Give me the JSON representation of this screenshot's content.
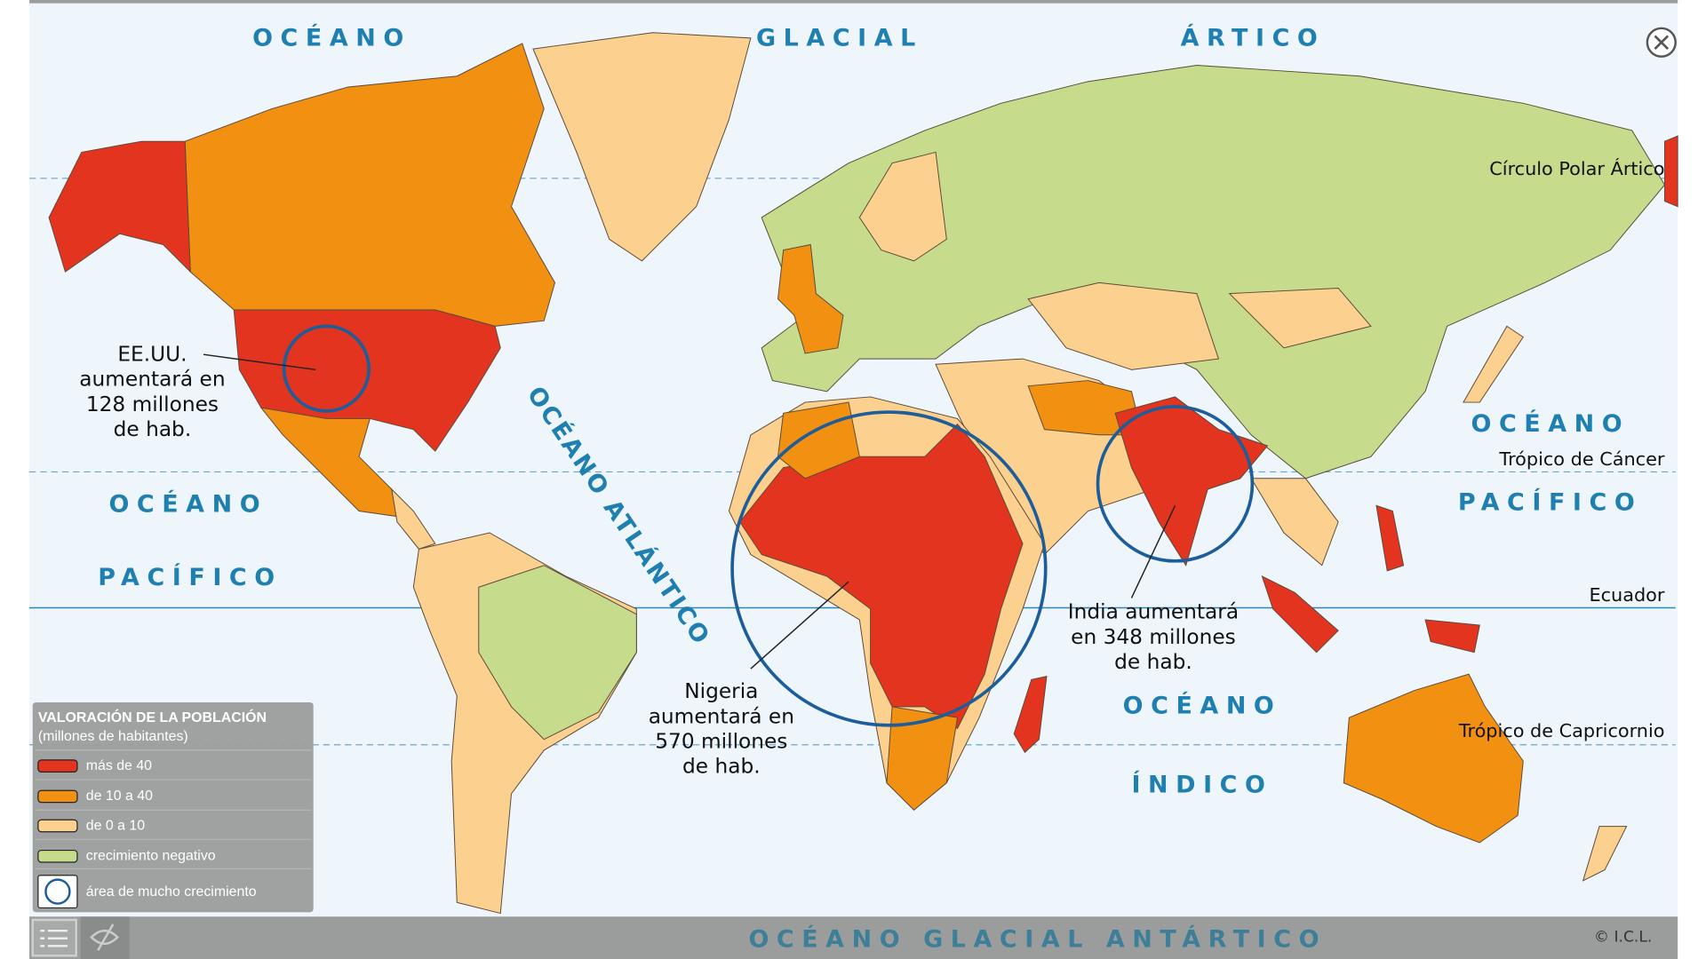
{
  "colors": {
    "sea": "#eef6fc",
    "mas_de_40": "#e3341f",
    "de_10_a_40": "#f29111",
    "de_0_a_10": "#fcd08e",
    "crecimiento_negativo": "#c6dc8c",
    "circle": "#1d5e9a",
    "bar": "#9b9d9d"
  },
  "oceans": {
    "arctic": [
      "OCÉANO",
      "GLACIAL",
      "ÁRTICO"
    ],
    "pacific_left": [
      "OCÉANO",
      "PACÍFICO"
    ],
    "pacific_right": [
      "OCÉANO",
      "PACÍFICO"
    ],
    "atlantic": "OCÉANO ATLÁNTICO",
    "indian": [
      "OCÉANO",
      "ÍNDICO"
    ],
    "antarctic": "OCÉANO GLACIAL ANTÁRTICO"
  },
  "lines": {
    "arctic_circle": "Círculo Polar Ártico",
    "tropic_cancer": "Trópico de Cáncer",
    "equator": "Ecuador",
    "tropic_capricorn": "Trópico de Capricornio"
  },
  "callouts": {
    "usa": [
      "EE.UU.",
      "aumentará en",
      "128 millones",
      "de hab."
    ],
    "nigeria": [
      "Nigeria",
      "aumentará en",
      "570 millones",
      "de hab."
    ],
    "india": [
      "India aumentará",
      "en 348 millones",
      "de hab."
    ]
  },
  "legend": {
    "title": "VALORACIÓN DE LA POBLACIÓN",
    "subtitle": "(millones de habitantes)",
    "items": [
      {
        "label": "más de 40",
        "color": "#e3341f"
      },
      {
        "label": "de 10 a 40",
        "color": "#f29111"
      },
      {
        "label": "de 0 a 10",
        "color": "#fcd08e"
      },
      {
        "label": "crecimiento negativo",
        "color": "#c6dc8c"
      },
      {
        "label": "área de mucho crecimiento",
        "icon": "circle-icon"
      }
    ]
  },
  "toolbar": {
    "legend_button_icon": "list-icon",
    "hide_button_icon": "eye-off-icon",
    "close_icon": "close-icon"
  },
  "copyright": "© I.C.L."
}
